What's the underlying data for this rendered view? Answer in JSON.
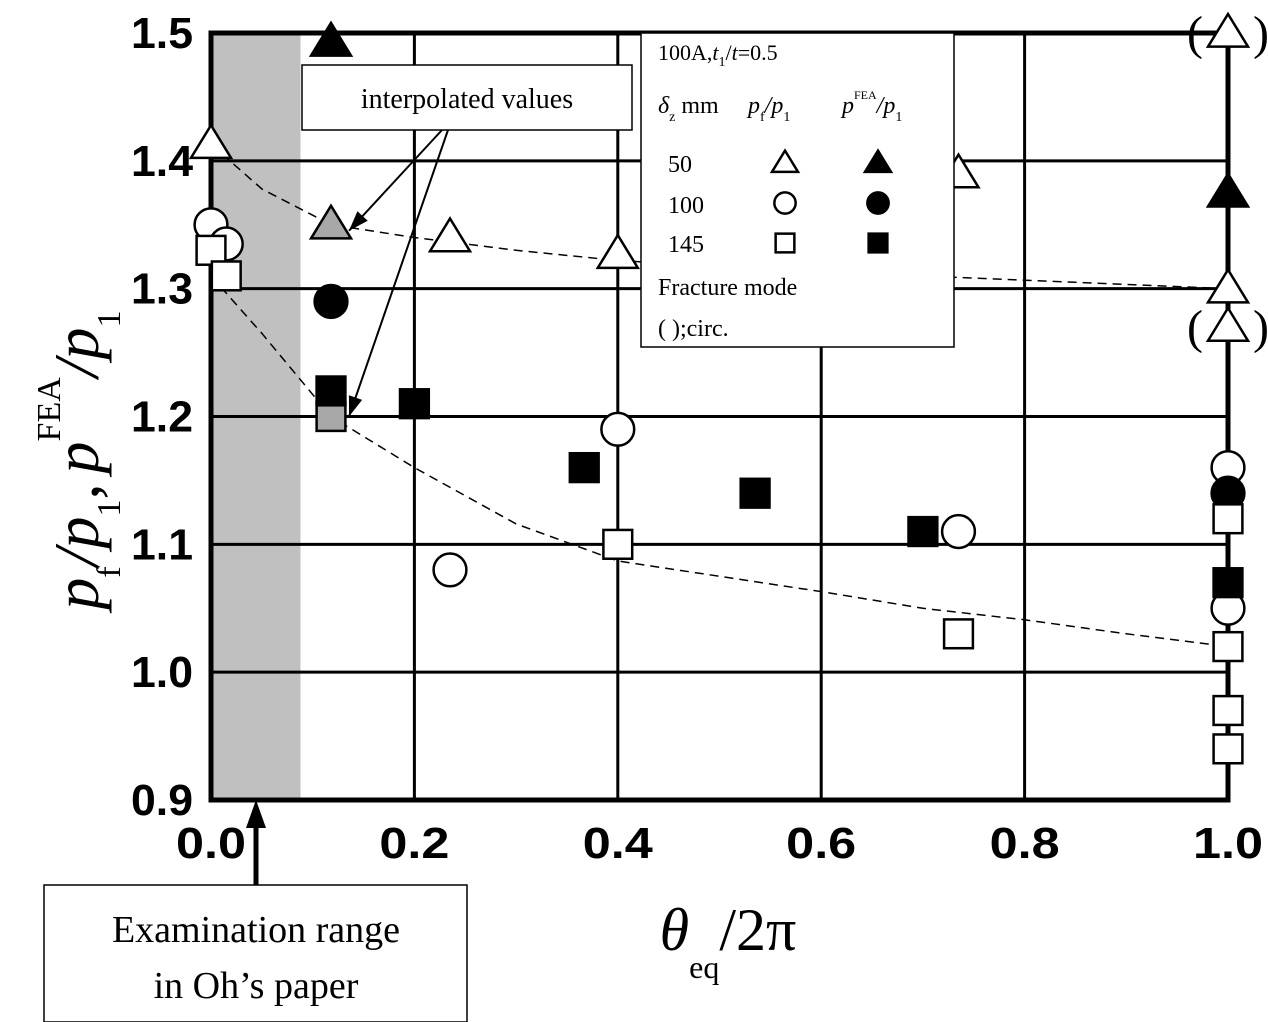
{
  "chart_data": {
    "type": "scatter",
    "xlim": [
      0.0,
      1.0
    ],
    "ylim": [
      0.9,
      1.5
    ],
    "x_ticks": [
      "0.0",
      "0.2",
      "0.4",
      "0.6",
      "0.8",
      "1.0"
    ],
    "y_ticks": [
      "0.9",
      "1.0",
      "1.1",
      "1.2",
      "1.3",
      "1.4",
      "1.5"
    ],
    "x_tick_values": [
      0.0,
      0.2,
      0.4,
      0.6,
      0.8,
      1.0
    ],
    "y_tick_values": [
      0.9,
      1.0,
      1.1,
      1.2,
      1.3,
      1.4,
      1.5
    ],
    "grid": true,
    "xlabel": {
      "main": "θ",
      "sub": "eq",
      "tail": "/2π"
    },
    "ylabel": {
      "p1": "p",
      "s1": "f",
      "p2": "/p",
      "s2": "1",
      "comma": ",",
      "p3": "p",
      "sup": "FEA",
      "p4": "/p",
      "s4": "1"
    },
    "shaded_range": [
      0.0,
      0.088
    ],
    "series": [
      {
        "marker": "triangle-open",
        "points": [
          [
            0.0,
            1.413
          ],
          [
            0.235,
            1.34
          ],
          [
            0.4,
            1.327
          ],
          [
            0.735,
            1.39
          ],
          [
            1.0,
            1.3
          ],
          [
            1.0,
            1.5
          ],
          [
            1.0,
            1.27
          ]
        ]
      },
      {
        "marker": "triangle-gray",
        "points": [
          [
            0.118,
            1.35
          ]
        ]
      },
      {
        "marker": "triangle-filled",
        "points": [
          [
            0.118,
            1.493
          ],
          [
            1.0,
            1.375
          ]
        ]
      },
      {
        "marker": "circle-open",
        "points": [
          [
            0.0,
            1.35
          ],
          [
            0.015,
            1.335
          ],
          [
            0.235,
            1.08
          ],
          [
            0.4,
            1.19
          ],
          [
            0.735,
            1.11
          ],
          [
            1.0,
            1.16
          ],
          [
            1.0,
            1.05
          ]
        ]
      },
      {
        "marker": "circle-filled",
        "points": [
          [
            0.118,
            1.29
          ],
          [
            1.0,
            1.14
          ]
        ]
      },
      {
        "marker": "square-open",
        "points": [
          [
            0.0,
            1.33
          ],
          [
            0.015,
            1.31
          ],
          [
            0.4,
            1.1
          ],
          [
            0.735,
            1.03
          ],
          [
            1.0,
            1.12
          ],
          [
            1.0,
            1.02
          ],
          [
            1.0,
            0.97
          ],
          [
            1.0,
            0.94
          ]
        ]
      },
      {
        "marker": "square-gray",
        "points": [
          [
            0.118,
            1.2
          ]
        ]
      },
      {
        "marker": "square-filled",
        "points": [
          [
            0.118,
            1.22
          ],
          [
            0.2,
            1.21
          ],
          [
            0.367,
            1.16
          ],
          [
            0.535,
            1.14
          ],
          [
            0.7,
            1.11
          ],
          [
            1.0,
            1.07
          ]
        ]
      }
    ],
    "fit_curves": [
      {
        "style": "dashed",
        "points": [
          [
            0.0,
            1.413
          ],
          [
            0.05,
            1.378
          ],
          [
            0.118,
            1.35
          ],
          [
            0.2,
            1.34
          ],
          [
            0.3,
            1.33
          ],
          [
            0.4,
            1.322
          ],
          [
            0.55,
            1.315
          ],
          [
            0.7,
            1.31
          ],
          [
            0.85,
            1.305
          ],
          [
            1.0,
            1.3
          ]
        ]
      },
      {
        "style": "dashed",
        "points": [
          [
            0.0,
            1.31
          ],
          [
            0.05,
            1.265
          ],
          [
            0.118,
            1.2
          ],
          [
            0.2,
            1.16
          ],
          [
            0.3,
            1.116
          ],
          [
            0.4,
            1.087
          ],
          [
            0.5,
            1.075
          ],
          [
            0.6,
            1.063
          ],
          [
            0.7,
            1.05
          ],
          [
            0.8,
            1.041
          ],
          [
            0.9,
            1.03
          ],
          [
            1.0,
            1.02
          ]
        ]
      }
    ],
    "arrows_to": [
      [
        0.118,
        1.35
      ],
      [
        0.118,
        1.2
      ]
    ],
    "paren_markers": [
      [
        1.0,
        1.5
      ],
      [
        1.0,
        1.27
      ]
    ],
    "annotations": {
      "interpolated": "interpolated values",
      "exam_line1": "Examination range",
      "exam_line2": "in Oh’s paper"
    },
    "legend": {
      "title_a": "100A,",
      "title_t1": "t",
      "title_t1_sub": "1",
      "title_b": "/",
      "title_t": "t",
      "title_c": "=0.5",
      "head_delta": "δ",
      "head_delta_sub": "z",
      "head_mm": " mm",
      "head_pf": "p",
      "head_pf_sub": "f",
      "head_pf_tail": "/p",
      "head_pf_tail_sub": "1",
      "head_fea_p": "p",
      "head_fea_sup": "FEA",
      "head_fea_tail": "/p",
      "head_fea_tail_sub": "1",
      "rows": [
        {
          "delta": "50",
          "open": "triangle-open",
          "filled": "triangle-filled"
        },
        {
          "delta": "100",
          "open": "circle-open",
          "filled": "circle-filled"
        },
        {
          "delta": "145",
          "open": "square-open",
          "filled": "square-filled"
        }
      ],
      "fracture": "Fracture mode",
      "circ": "(  );circ."
    },
    "paren_label": "(  )"
  }
}
